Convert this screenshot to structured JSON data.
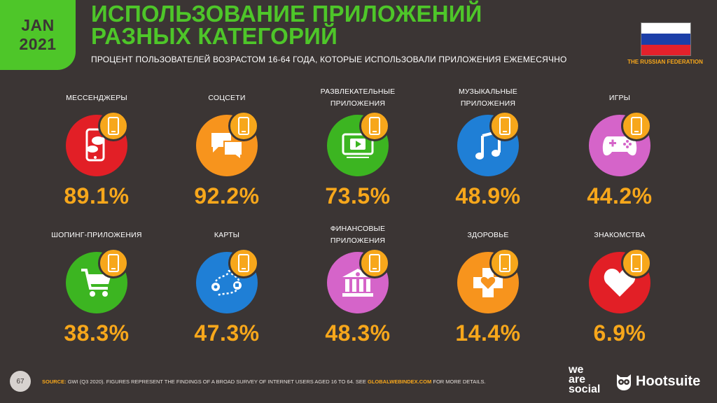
{
  "header": {
    "date_month": "JAN",
    "date_year": "2021",
    "title_line1": "ИСПОЛЬЗОВАНИЕ ПРИЛОЖЕНИЙ",
    "title_line2": "РАЗНЫХ КАТЕГОРИЙ",
    "subtitle": "ПРОЦЕНТ ПОЛЬЗОВАТЕЛЕЙ ВОЗРАСТОМ 16-64 ГОДА, КОТОРЫЕ ИСПОЛЬЗОВАЛИ ПРИЛОЖЕНИЯ ЕЖЕМЕСЯЧНО",
    "country": "THE RUSSIAN FEDERATION",
    "flag_colors": [
      "#ffffff",
      "#1c3fa8",
      "#e4212b"
    ]
  },
  "colors": {
    "accent_green": "#4ec629",
    "accent_orange": "#f7a71b",
    "background": "#3b3534"
  },
  "categories": [
    {
      "label_line1": "МЕССЕНДЖЕРЫ",
      "label_line2": "",
      "value": "89.1%",
      "color": "#e21f26",
      "icon": "messenger-phone-icon"
    },
    {
      "label_line1": "СОЦСЕТИ",
      "label_line2": "",
      "value": "92.2%",
      "color": "#f7941d",
      "icon": "chat-bubbles-icon"
    },
    {
      "label_line1": "РАЗВЛЕКАТЕЛЬНЫЕ",
      "label_line2": "ПРИЛОЖЕНИЯ",
      "value": "73.5%",
      "color": "#3cb521",
      "icon": "video-player-icon"
    },
    {
      "label_line1": "МУЗЫКАЛЬНЫЕ",
      "label_line2": "ПРИЛОЖЕНИЯ",
      "value": "48.9%",
      "color": "#1f7fd6",
      "icon": "music-note-icon"
    },
    {
      "label_line1": "ИГРЫ",
      "label_line2": "",
      "value": "44.2%",
      "color": "#d564c9",
      "icon": "gamepad-icon"
    },
    {
      "label_line1": "ШОПИНГ-ПРИЛОЖЕНИЯ",
      "label_line2": "",
      "value": "38.3%",
      "color": "#3cb521",
      "icon": "shopping-cart-icon"
    },
    {
      "label_line1": "КАРТЫ",
      "label_line2": "",
      "value": "47.3%",
      "color": "#1f7fd6",
      "icon": "map-route-icon"
    },
    {
      "label_line1": "ФИНАНСОВЫЕ",
      "label_line2": "ПРИЛОЖЕНИЯ",
      "value": "48.3%",
      "color": "#d564c9",
      "icon": "bank-icon"
    },
    {
      "label_line1": "ЗДОРОВЬЕ",
      "label_line2": "",
      "value": "14.4%",
      "color": "#f7941d",
      "icon": "health-cross-icon"
    },
    {
      "label_line1": "ЗНАКОМСТВА",
      "label_line2": "",
      "value": "6.9%",
      "color": "#e21f26",
      "icon": "heart-icon"
    }
  ],
  "footer": {
    "page_number": "67",
    "source_key": "SOURCE:",
    "source_text": "GWI (Q3 2020). FIGURES REPRESENT THE FINDINGS OF A BROAD SURVEY OF INTERNET USERS AGED 16 TO 64. SEE",
    "source_link": "GLOBALWEBINDEX.COM",
    "source_tail": "FOR MORE DETAILS.",
    "brand_wearesocial_1": "we",
    "brand_wearesocial_2": "are",
    "brand_wearesocial_3": "social",
    "brand_hootsuite": "Hootsuite"
  }
}
